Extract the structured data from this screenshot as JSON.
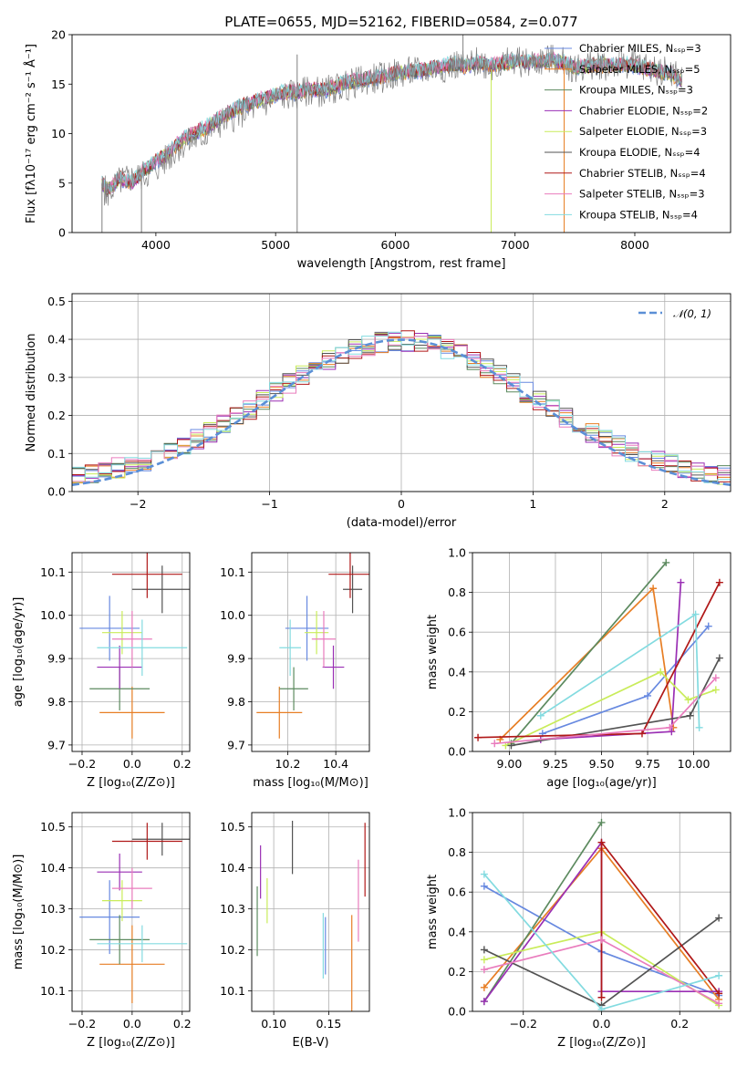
{
  "palette": [
    "#6789e0",
    "#e77e24",
    "#5c8a5f",
    "#9a2fb4",
    "#c9ec5a",
    "#535353",
    "#b01818",
    "#e97cbd",
    "#83dbe0"
  ],
  "chart_data": [
    {
      "id": "spectrum",
      "type": "line",
      "title": "PLATE=0655, MJD=52162, FIBERID=0584, z=0.077",
      "xlabel": "wavelength [Angstrom, rest frame]",
      "ylabel": "Flux [fλ10⁻¹⁷ erg cm⁻² s⁻¹ Å⁻¹]",
      "xlim": [
        3300,
        8800
      ],
      "ylim": [
        0,
        20
      ],
      "xticks": [
        4000,
        5000,
        6000,
        7000,
        8000
      ],
      "yticks": [
        0,
        5,
        10,
        15,
        20
      ],
      "grid": false,
      "legend_position": "right",
      "data_x": [
        3550,
        3600,
        3700,
        3800,
        3900,
        4000,
        4100,
        4200,
        4300,
        4400,
        4500,
        4600,
        4700,
        4800,
        4900,
        5000,
        5100,
        5200,
        5300,
        5400,
        5500,
        5600,
        5700,
        5800,
        5900,
        6000,
        6100,
        6200,
        6300,
        6400,
        6500,
        6600,
        6700,
        6800,
        6900,
        7000,
        7100,
        7200,
        7300,
        7400,
        7500,
        7600,
        7700,
        7800,
        7900,
        8000,
        8100,
        8200,
        8300,
        8400
      ],
      "data_y": [
        4.5,
        4.0,
        5.2,
        5.5,
        5.8,
        6.5,
        7.5,
        8.8,
        9.2,
        9.8,
        10.8,
        11.5,
        12.0,
        12.5,
        13.0,
        13.6,
        13.9,
        14.0,
        14.4,
        14.2,
        14.6,
        14.9,
        15.3,
        15.5,
        15.7,
        16.0,
        16.2,
        16.3,
        16.5,
        16.7,
        17.0,
        16.8,
        17.3,
        16.9,
        17.0,
        17.4,
        17.1,
        17.3,
        17.5,
        17.2,
        16.6,
        16.8,
        17.0,
        16.9,
        17.1,
        17.0,
        16.7,
        16.4,
        16.2,
        15.5
      ],
      "model_x": [
        3550,
        3600,
        3700,
        3800,
        3900,
        4000,
        4100,
        4200,
        4300,
        4400,
        4500,
        4600,
        4700,
        4800,
        4900,
        5000,
        5100,
        5200,
        5300,
        5400,
        5500,
        5600,
        5700,
        5800,
        5900,
        6000,
        6100,
        6200,
        6300,
        6400,
        6500,
        6600,
        6700,
        6800,
        6900,
        7000,
        7100,
        7200,
        7300,
        7400,
        7500,
        7600,
        7700,
        7800,
        7900,
        8000,
        8100,
        8200,
        8300,
        8400
      ],
      "model_y": [
        5.0,
        4.3,
        5.5,
        5.0,
        6.3,
        7.2,
        8.0,
        9.2,
        10.0,
        10.5,
        11.3,
        12.0,
        12.7,
        13.1,
        13.6,
        13.9,
        14.2,
        14.2,
        14.5,
        14.4,
        14.8,
        15.2,
        15.4,
        15.6,
        15.8,
        16.1,
        16.3,
        16.3,
        16.6,
        16.8,
        17.0,
        16.8,
        17.2,
        16.9,
        17.1,
        17.3,
        17.2,
        17.3,
        17.5,
        17.2,
        16.7,
        16.8,
        17.0,
        16.9,
        17.0,
        16.9,
        16.6,
        16.3,
        16.0,
        15.3
      ],
      "series": [
        {
          "name": "Chabrier MILES, Nₛₛₚ=3"
        },
        {
          "name": "Salpeter MILES, Nₛₛₚ=5"
        },
        {
          "name": "Kroupa MILES, Nₛₛₚ=3"
        },
        {
          "name": "Chabrier ELODIE, Nₛₛₚ=2"
        },
        {
          "name": "Salpeter ELODIE, Nₛₛₚ=3"
        },
        {
          "name": "Kroupa ELODIE, Nₛₛₚ=4"
        },
        {
          "name": "Chabrier STELIB, Nₛₛₚ=4"
        },
        {
          "name": "Salpeter STELIB, Nₛₛₚ=3"
        },
        {
          "name": "Kroupa STELIB, Nₛₛₚ=4"
        }
      ]
    },
    {
      "id": "residuals",
      "type": "step",
      "xlabel": "(data-model)/error",
      "ylabel": "Normed distribution",
      "xlim": [
        -2.5,
        2.5
      ],
      "ylim": [
        0,
        0.52
      ],
      "xticks": [
        -2,
        -1,
        0,
        1,
        2
      ],
      "yticks": [
        0.0,
        0.1,
        0.2,
        0.3,
        0.4,
        0.5
      ],
      "grid": true,
      "legend_position": "upper right",
      "reference": {
        "name": "𝒩(0, 1)",
        "mean": 0,
        "sigma": 1
      },
      "bin_start": -2.5,
      "bin_width": 0.1
    },
    {
      "id": "age_vs_Z",
      "type": "errorbar",
      "xlabel": "Z [log₁₀(Z/Z⊙)]",
      "ylabel": "age  [log₁₀(age/yr)]",
      "xlim": [
        -0.24,
        0.23
      ],
      "ylim": [
        9.685,
        10.145
      ],
      "xticks": [
        -0.2,
        0.0,
        0.2
      ],
      "yticks": [
        9.7,
        9.8,
        9.9,
        10.0,
        10.1
      ],
      "grid": true,
      "points": [
        {
          "x": -0.09,
          "xerr": 0.12,
          "y": 9.97,
          "yerr": 0.075
        },
        {
          "x": 0.0,
          "xerr": 0.13,
          "y": 9.775,
          "yerr": 0.06
        },
        {
          "x": -0.05,
          "xerr": 0.12,
          "y": 9.83,
          "yerr": 0.05
        },
        {
          "x": -0.05,
          "xerr": 0.09,
          "y": 9.88,
          "yerr": 0.05
        },
        {
          "x": -0.04,
          "xerr": 0.08,
          "y": 9.96,
          "yerr": 0.05
        },
        {
          "x": 0.12,
          "xerr": 0.12,
          "y": 10.06,
          "yerr": 0.055
        },
        {
          "x": 0.06,
          "xerr": 0.14,
          "y": 10.095,
          "yerr": 0.055
        },
        {
          "x": 0.0,
          "xerr": 0.08,
          "y": 9.945,
          "yerr": 0.065
        },
        {
          "x": 0.04,
          "xerr": 0.18,
          "y": 9.925,
          "yerr": 0.065
        }
      ]
    },
    {
      "id": "age_vs_mass",
      "type": "errorbar",
      "xlabel": "mass [log₁₀(M/M⊙)]",
      "ylabel": "",
      "xlim": [
        10.05,
        10.54
      ],
      "ylim": [
        9.685,
        10.145
      ],
      "xticks": [
        10.2,
        10.4
      ],
      "yticks": [
        9.7,
        9.8,
        9.9,
        10.0,
        10.1
      ],
      "grid": true,
      "points": [
        {
          "x": 10.28,
          "xerr": 0.09,
          "y": 9.97,
          "yerr": 0.075
        },
        {
          "x": 10.165,
          "xerr": 0.095,
          "y": 9.775,
          "yerr": 0.06
        },
        {
          "x": 10.225,
          "xerr": 0.06,
          "y": 9.83,
          "yerr": 0.05
        },
        {
          "x": 10.39,
          "xerr": 0.045,
          "y": 9.88,
          "yerr": 0.05
        },
        {
          "x": 10.32,
          "xerr": 0.05,
          "y": 9.96,
          "yerr": 0.05
        },
        {
          "x": 10.47,
          "xerr": 0.04,
          "y": 10.06,
          "yerr": 0.055
        },
        {
          "x": 10.46,
          "xerr": 0.09,
          "y": 10.095,
          "yerr": 0.055
        },
        {
          "x": 10.35,
          "xerr": 0.05,
          "y": 9.945,
          "yerr": 0.065
        },
        {
          "x": 10.21,
          "xerr": 0.045,
          "y": 9.925,
          "yerr": 0.065
        }
      ]
    },
    {
      "id": "weights_vs_age",
      "type": "line",
      "xlabel": "age  [log₁₀(age/yr)]",
      "ylabel": "mass weight",
      "xlim": [
        8.8,
        10.2
      ],
      "ylim": [
        0,
        1
      ],
      "xticks": [
        9.0,
        9.25,
        9.5,
        9.75,
        10.0
      ],
      "yticks": [
        0.0,
        0.2,
        0.4,
        0.6,
        0.8,
        1.0
      ],
      "grid": true,
      "series": [
        {
          "x": [
            9.18,
            9.75,
            10.08
          ],
          "y": [
            0.09,
            0.28,
            0.63
          ]
        },
        {
          "x": [
            8.95,
            9.78,
            9.89
          ],
          "y": [
            0.06,
            0.82,
            0.12
          ]
        },
        {
          "x": [
            9.01,
            9.85
          ],
          "y": [
            0.04,
            0.95
          ]
        },
        {
          "x": [
            9.17,
            9.88,
            9.93
          ],
          "y": [
            0.06,
            0.1,
            0.85
          ]
        },
        {
          "x": [
            8.98,
            9.82,
            9.97,
            10.12
          ],
          "y": [
            0.03,
            0.4,
            0.26,
            0.31
          ]
        },
        {
          "x": [
            9.01,
            9.98,
            10.14
          ],
          "y": [
            0.03,
            0.18,
            0.47
          ]
        },
        {
          "x": [
            8.83,
            9.72,
            10.14
          ],
          "y": [
            0.07,
            0.09,
            0.85
          ]
        },
        {
          "x": [
            8.92,
            9.87,
            10.12
          ],
          "y": [
            0.04,
            0.12,
            0.37
          ]
        },
        {
          "x": [
            9.17,
            10.01,
            10.03
          ],
          "y": [
            0.18,
            0.69,
            0.12
          ]
        }
      ]
    },
    {
      "id": "mass_vs_Z",
      "type": "errorbar",
      "xlabel": "Z [log₁₀(Z/Z⊙)]",
      "ylabel": "mass [log₁₀(M/M⊙)]",
      "xlim": [
        -0.24,
        0.23
      ],
      "ylim": [
        10.05,
        10.535
      ],
      "xticks": [
        -0.2,
        0.0,
        0.2
      ],
      "yticks": [
        10.1,
        10.2,
        10.3,
        10.4,
        10.5
      ],
      "grid": true,
      "points": [
        {
          "x": -0.09,
          "xerr": 0.12,
          "y": 10.28,
          "yerr": 0.09
        },
        {
          "x": 0.0,
          "xerr": 0.13,
          "y": 10.165,
          "yerr": 0.095
        },
        {
          "x": -0.05,
          "xerr": 0.12,
          "y": 10.225,
          "yerr": 0.06
        },
        {
          "x": -0.05,
          "xerr": 0.09,
          "y": 10.39,
          "yerr": 0.045
        },
        {
          "x": -0.04,
          "xerr": 0.08,
          "y": 10.32,
          "yerr": 0.05
        },
        {
          "x": 0.12,
          "xerr": 0.12,
          "y": 10.47,
          "yerr": 0.04
        },
        {
          "x": 0.06,
          "xerr": 0.14,
          "y": 10.465,
          "yerr": 0.045
        },
        {
          "x": 0.0,
          "xerr": 0.08,
          "y": 10.35,
          "yerr": 0.05
        },
        {
          "x": 0.04,
          "xerr": 0.18,
          "y": 10.215,
          "yerr": 0.045
        }
      ]
    },
    {
      "id": "mass_vs_ebv",
      "type": "errorbar",
      "xlabel": "E(B-V)",
      "ylabel": "",
      "xlim": [
        0.08,
        0.187
      ],
      "ylim": [
        10.05,
        10.535
      ],
      "xticks": [
        0.1,
        0.15
      ],
      "yticks": [
        10.1,
        10.2,
        10.3,
        10.4,
        10.5
      ],
      "grid": true,
      "points": [
        {
          "x": 0.147,
          "xerr": 0,
          "y": 10.21,
          "yerr": 0.07
        },
        {
          "x": 0.171,
          "xerr": 0,
          "y": 10.165,
          "yerr": 0.12
        },
        {
          "x": 0.085,
          "xerr": 0,
          "y": 10.27,
          "yerr": 0.085
        },
        {
          "x": 0.088,
          "xerr": 0,
          "y": 10.39,
          "yerr": 0.065
        },
        {
          "x": 0.094,
          "xerr": 0,
          "y": 10.32,
          "yerr": 0.055
        },
        {
          "x": 0.117,
          "xerr": 0,
          "y": 10.45,
          "yerr": 0.065
        },
        {
          "x": 0.183,
          "xerr": 0,
          "y": 10.42,
          "yerr": 0.09
        },
        {
          "x": 0.177,
          "xerr": 0,
          "y": 10.32,
          "yerr": 0.1
        },
        {
          "x": 0.145,
          "xerr": 0,
          "y": 10.21,
          "yerr": 0.08
        }
      ]
    },
    {
      "id": "weights_vs_Z",
      "type": "line",
      "xlabel": "Z [log₁₀(Z/Z⊙)]",
      "ylabel": "mass weight",
      "xlim": [
        -0.33,
        0.33
      ],
      "ylim": [
        0,
        1
      ],
      "xticks": [
        -0.2,
        0.0,
        0.2
      ],
      "yticks": [
        0.0,
        0.2,
        0.4,
        0.6,
        0.8,
        1.0
      ],
      "grid": true,
      "series": [
        {
          "x": [
            -0.3,
            0.0,
            0.3
          ],
          "y": [
            0.63,
            0.3,
            0.08
          ]
        },
        {
          "x": [
            -0.3,
            0.0,
            0.3
          ],
          "y": [
            0.12,
            0.82,
            0.06
          ]
        },
        {
          "x": [
            -0.3,
            0.0
          ],
          "y": [
            0.05,
            0.95
          ]
        },
        {
          "x": [
            -0.3,
            0.0,
            0.0,
            0.3
          ],
          "y": [
            0.05,
            0.85,
            0.1,
            0.1
          ]
        },
        {
          "x": [
            -0.3,
            0.0,
            0.3
          ],
          "y": [
            0.26,
            0.4,
            0.03
          ]
        },
        {
          "x": [
            -0.3,
            0.0,
            0.3
          ],
          "y": [
            0.31,
            0.03,
            0.47
          ]
        },
        {
          "x": [
            0.0,
            0.0,
            0.3
          ],
          "y": [
            0.07,
            0.85,
            0.09
          ]
        },
        {
          "x": [
            -0.3,
            0.0,
            0.3
          ],
          "y": [
            0.21,
            0.36,
            0.04
          ]
        },
        {
          "x": [
            -0.3,
            0.0,
            0.3
          ],
          "y": [
            0.69,
            0.01,
            0.18
          ]
        }
      ]
    }
  ]
}
